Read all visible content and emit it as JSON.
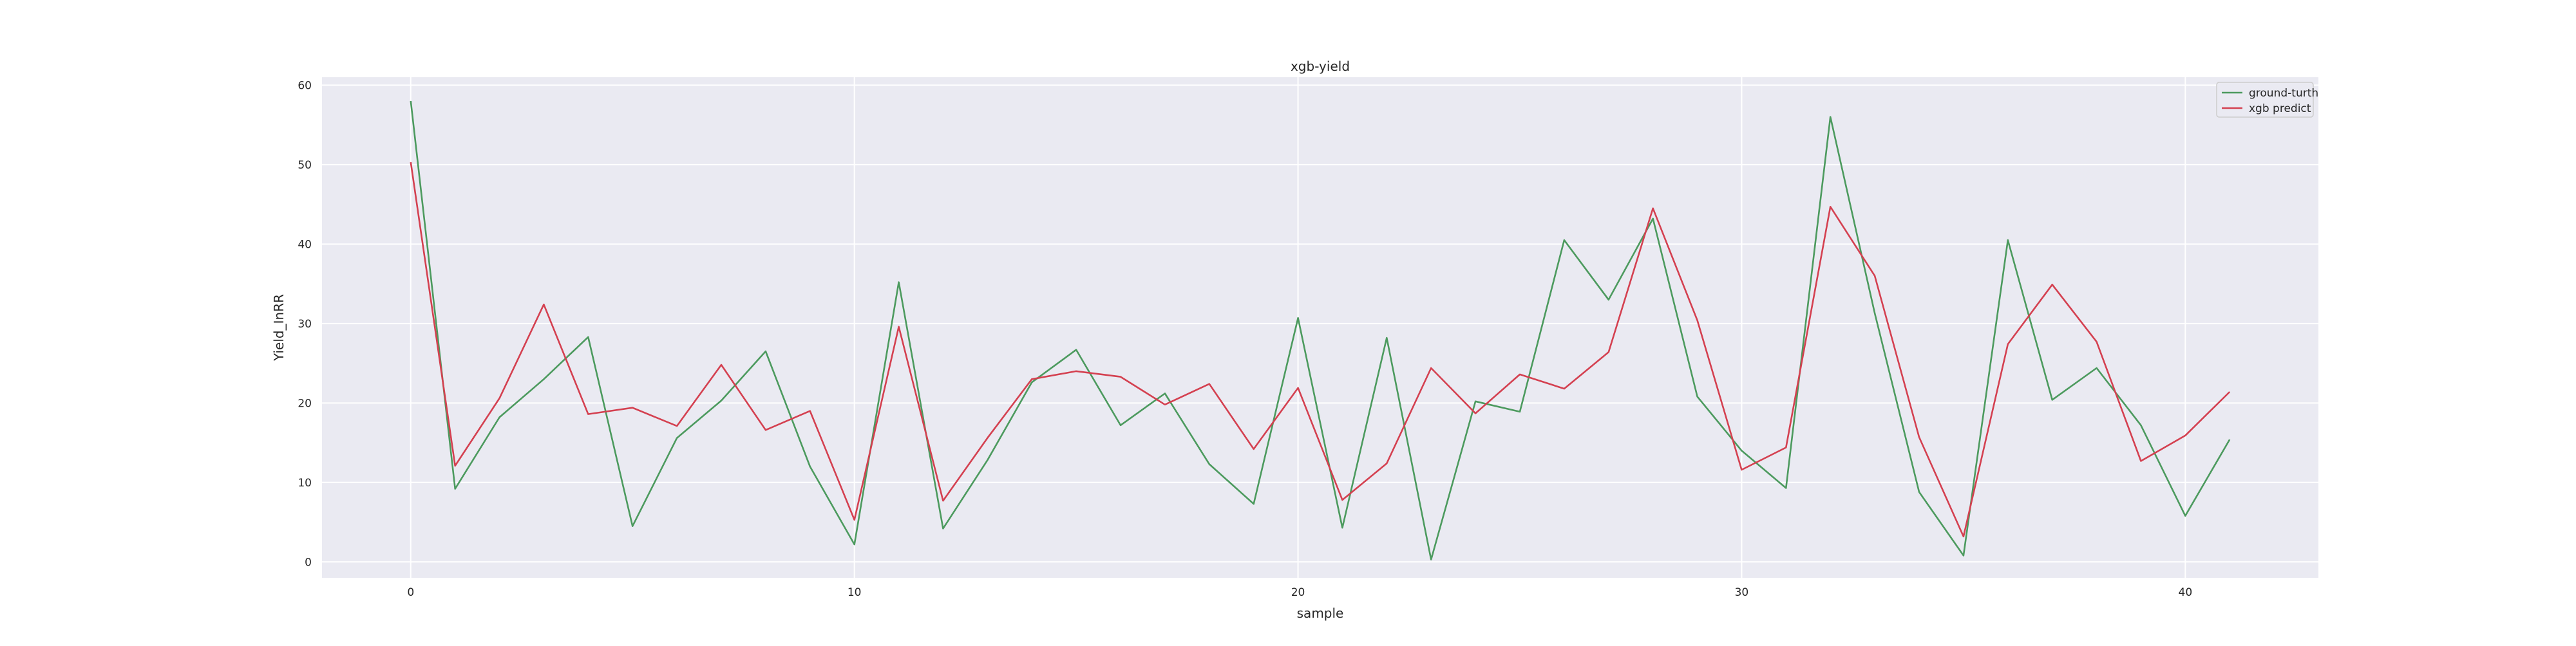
{
  "chart_data": {
    "type": "line",
    "title": "xgb-yield",
    "xlabel": "sample",
    "ylabel": "Yield_InRR",
    "xlim": [
      -2,
      43
    ],
    "ylim": [
      -2,
      61
    ],
    "x_ticks": [
      0,
      10,
      20,
      30,
      40
    ],
    "y_ticks": [
      0,
      10,
      20,
      30,
      40,
      50,
      60
    ],
    "grid": true,
    "legend_position": "top-right",
    "x": [
      0,
      1,
      2,
      3,
      4,
      5,
      6,
      7,
      8,
      9,
      10,
      11,
      12,
      13,
      14,
      15,
      16,
      17,
      18,
      19,
      20,
      21,
      22,
      23,
      24,
      25,
      26,
      27,
      28,
      29,
      30,
      31,
      32,
      33,
      34,
      35,
      36,
      37,
      38,
      39,
      40,
      41
    ],
    "series": [
      {
        "name": "ground-turth",
        "color": "#4c9a5e",
        "values": [
          58.0,
          9.2,
          18.2,
          23.0,
          28.3,
          4.5,
          15.6,
          20.3,
          26.5,
          12.0,
          2.2,
          35.2,
          4.2,
          12.8,
          22.6,
          26.7,
          17.2,
          21.2,
          12.3,
          7.3,
          30.7,
          4.3,
          28.2,
          0.3,
          20.2,
          18.9,
          40.5,
          33.0,
          43.2,
          20.8,
          14.0,
          9.3,
          56.0,
          31.3,
          8.8,
          0.8,
          40.5,
          20.4,
          24.4,
          17.2,
          5.8,
          15.4
        ]
      },
      {
        "name": "xgb predict",
        "color": "#d44050",
        "values": [
          50.3,
          12.1,
          20.6,
          32.4,
          18.6,
          19.4,
          17.1,
          24.8,
          16.6,
          19.0,
          5.3,
          29.6,
          7.7,
          15.6,
          23.0,
          24.0,
          23.3,
          19.8,
          22.4,
          14.2,
          21.9,
          7.8,
          12.4,
          24.4,
          18.7,
          23.6,
          21.8,
          26.4,
          44.5,
          30.4,
          11.6,
          14.4,
          44.7,
          36.0,
          15.7,
          3.2,
          27.4,
          34.9,
          27.7,
          12.7,
          15.9,
          21.4
        ]
      }
    ]
  },
  "colors": {
    "plot_background": "#eaeaf2",
    "grid": "#ffffff",
    "text": "#262626"
  }
}
